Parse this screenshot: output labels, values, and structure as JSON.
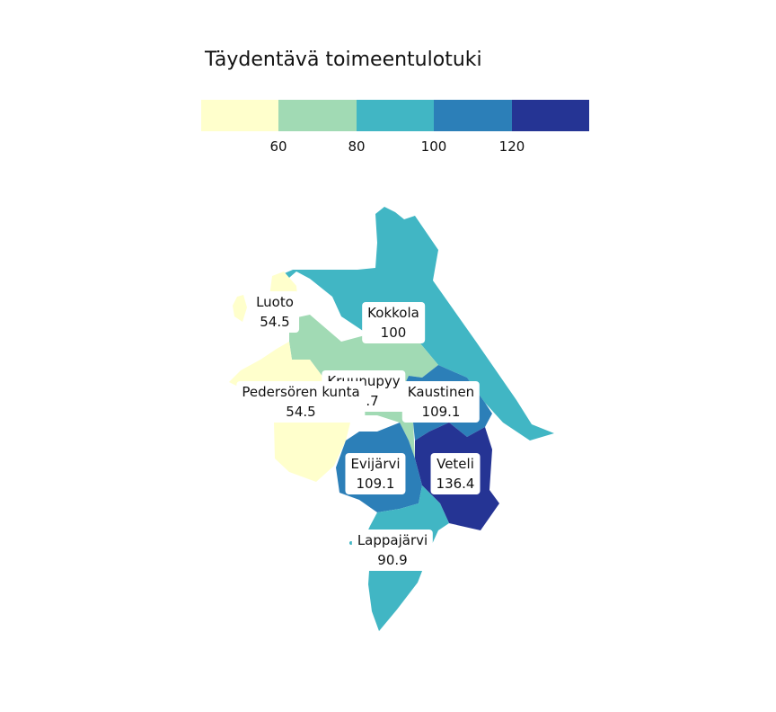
{
  "title": "Täydentävä toimeentulotuki",
  "legend": {
    "colors": [
      "#ffffcc",
      "#a1dab4",
      "#41b6c4",
      "#2c7fb8",
      "#253494"
    ],
    "ticks": [
      "60",
      "80",
      "100",
      "120"
    ]
  },
  "regions": [
    {
      "name": "Luoto",
      "value": "54.5",
      "color": "#ffffcc"
    },
    {
      "name": "Kokkola",
      "value": "100",
      "color": "#41b6c4"
    },
    {
      "name": "Kruunupyy",
      "value": "72.7",
      "color": "#a1dab4"
    },
    {
      "name": "Pedersören kunta",
      "value": "54.5",
      "color": "#ffffcc"
    },
    {
      "name": "Kaustinen",
      "value": "109.1",
      "color": "#2c7fb8"
    },
    {
      "name": "Evijärvi",
      "value": "109.1",
      "color": "#2c7fb8"
    },
    {
      "name": "Veteli",
      "value": "136.4",
      "color": "#253494"
    },
    {
      "name": "Lappajärvi",
      "value": "90.9",
      "color": "#41b6c4"
    }
  ]
}
